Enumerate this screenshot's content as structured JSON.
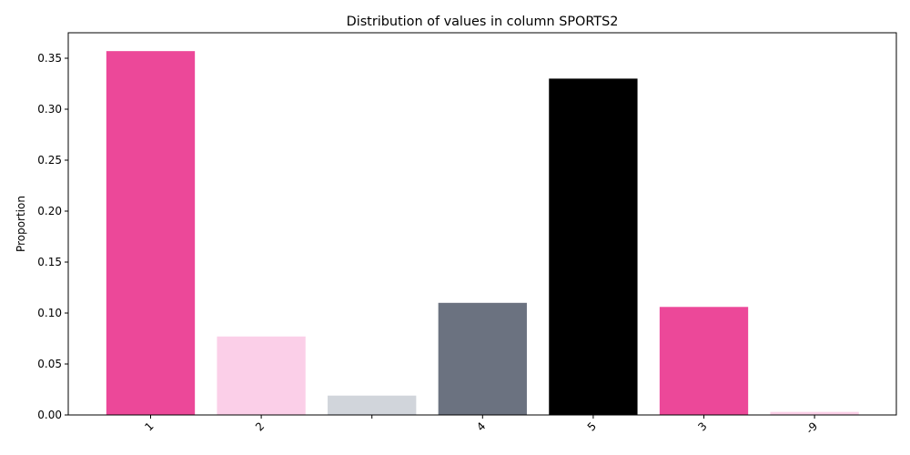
{
  "chart_data": {
    "type": "bar",
    "title": "Distribution of values in column SPORTS2",
    "xlabel": "",
    "ylabel": "Proportion",
    "categories": [
      "1",
      "2",
      "",
      "4",
      "5",
      "3",
      "-9"
    ],
    "values": [
      0.357,
      0.077,
      0.019,
      0.11,
      0.33,
      0.106,
      0.003
    ],
    "colors": [
      "#ec4899",
      "#fbcfe8",
      "#d1d5db",
      "#6b7280",
      "#000000",
      "#ec4899",
      "#fbcfe8"
    ],
    "ylim": [
      0,
      0.375
    ],
    "yticks": [
      0.0,
      0.05,
      0.1,
      0.15,
      0.2,
      0.25,
      0.3,
      0.35
    ],
    "ytick_labels": [
      "0.00",
      "0.05",
      "0.10",
      "0.15",
      "0.20",
      "0.25",
      "0.30",
      "0.35"
    ],
    "grid": false,
    "legend": "none"
  }
}
